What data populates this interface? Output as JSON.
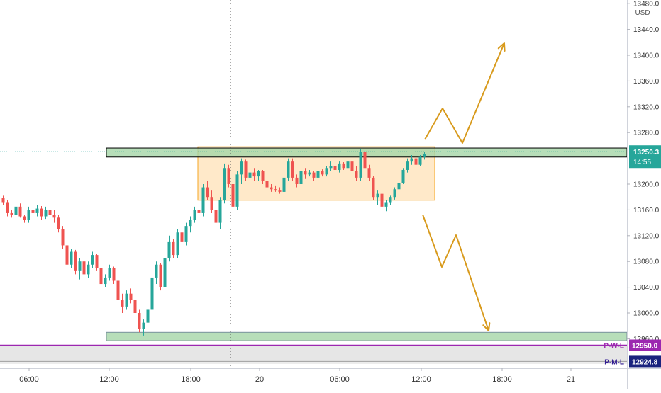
{
  "chart_data": {
    "type": "candlestick",
    "symbol_currency": "USD",
    "y_axis": {
      "ticks": [
        13480.0,
        13440.0,
        13400.0,
        13360.0,
        13320.0,
        13280.0,
        13200.0,
        13160.0,
        13120.0,
        13080.0,
        13040.0,
        13000.0,
        12960.0
      ],
      "tick_labels": [
        "13480.0",
        "13440.0",
        "13400.0",
        "13360.0",
        "13320.0",
        "13280.0",
        "13200.0",
        "13160.0",
        "13120.0",
        "13080.0",
        "13040.0",
        "13000.0",
        "12960.0"
      ],
      "range": [
        12912,
        13488
      ]
    },
    "x_axis": {
      "labels": [
        "06:00",
        "12:00",
        "18:00",
        "20",
        "06:00",
        "12:00",
        "18:00",
        "21"
      ]
    },
    "price_badge": {
      "value": "13250.3",
      "countdown": "14:55",
      "color": "#26a69a"
    },
    "levels": [
      {
        "tag": "P-W-L",
        "value": "12950.0",
        "price": 12950.0,
        "color": "#9c27b0"
      },
      {
        "tag": "P-M-L",
        "value": "12924.8",
        "price": 12924.8,
        "color": "#311b92"
      }
    ],
    "zones": [
      {
        "kind": "resistance",
        "low": 13242,
        "high": 13256,
        "color": "#a5d6a7"
      },
      {
        "kind": "support",
        "low": 12957,
        "high": 12970,
        "color": "#a5d6a7"
      },
      {
        "kind": "range",
        "low": 13175,
        "high": 13258,
        "color": "#ffe0b2"
      }
    ],
    "colors": {
      "up": "#26a69a",
      "down": "#ef5350",
      "projection": "#d89a1c"
    },
    "candles": [
      [
        13178,
        13182,
        13168,
        13172
      ],
      [
        13172,
        13175,
        13150,
        13155
      ],
      [
        13155,
        13160,
        13148,
        13152
      ],
      [
        13152,
        13168,
        13150,
        13165
      ],
      [
        13165,
        13170,
        13148,
        13150
      ],
      [
        13150,
        13152,
        13140,
        13145
      ],
      [
        13145,
        13165,
        13140,
        13160
      ],
      [
        13160,
        13165,
        13150,
        13155
      ],
      [
        13155,
        13168,
        13150,
        13162
      ],
      [
        13162,
        13166,
        13145,
        13150
      ],
      [
        13150,
        13165,
        13146,
        13160
      ],
      [
        13160,
        13162,
        13148,
        13152
      ],
      [
        13152,
        13160,
        13140,
        13148
      ],
      [
        13148,
        13152,
        13125,
        13130
      ],
      [
        13130,
        13135,
        13100,
        13105
      ],
      [
        13105,
        13110,
        13070,
        13075
      ],
      [
        13075,
        13100,
        13070,
        13095
      ],
      [
        13095,
        13098,
        13060,
        13065
      ],
      [
        13065,
        13085,
        13052,
        13080
      ],
      [
        13080,
        13085,
        13055,
        13060
      ],
      [
        13060,
        13080,
        13055,
        13075
      ],
      [
        13075,
        13095,
        13070,
        13090
      ],
      [
        13090,
        13092,
        13065,
        13070
      ],
      [
        13070,
        13078,
        13040,
        13045
      ],
      [
        13045,
        13060,
        13040,
        13055
      ],
      [
        13055,
        13075,
        13050,
        13070
      ],
      [
        13070,
        13072,
        13045,
        13050
      ],
      [
        13050,
        13055,
        13015,
        13020
      ],
      [
        13020,
        13030,
        13000,
        13010
      ],
      [
        13010,
        13035,
        13005,
        13030
      ],
      [
        13030,
        13038,
        13015,
        13020
      ],
      [
        13020,
        13025,
        12995,
        13000
      ],
      [
        13000,
        13005,
        12970,
        12975
      ],
      [
        12975,
        12990,
        12965,
        12985
      ],
      [
        12985,
        13010,
        12980,
        13005
      ],
      [
        13005,
        13060,
        13000,
        13055
      ],
      [
        13055,
        13080,
        13045,
        13075
      ],
      [
        13075,
        13078,
        13035,
        13040
      ],
      [
        13040,
        13090,
        13035,
        13085
      ],
      [
        13085,
        13120,
        13080,
        13110
      ],
      [
        13110,
        13115,
        13085,
        13090
      ],
      [
        13090,
        13130,
        13085,
        13125
      ],
      [
        13125,
        13132,
        13105,
        13110
      ],
      [
        13110,
        13140,
        13105,
        13135
      ],
      [
        13135,
        13150,
        13125,
        13145
      ],
      [
        13145,
        13165,
        13140,
        13160
      ],
      [
        13160,
        13163,
        13150,
        13155
      ],
      [
        13155,
        13200,
        13150,
        13195
      ],
      [
        13195,
        13205,
        13175,
        13180
      ],
      [
        13180,
        13190,
        13155,
        13160
      ],
      [
        13160,
        13170,
        13135,
        13140
      ],
      [
        13140,
        13180,
        13130,
        13175
      ],
      [
        13175,
        13232,
        13170,
        13225
      ],
      [
        13225,
        13230,
        13195,
        13200
      ],
      [
        13200,
        13205,
        13160,
        13165
      ],
      [
        13165,
        13220,
        13160,
        13215
      ],
      [
        13215,
        13240,
        13200,
        13235
      ],
      [
        13235,
        13238,
        13205,
        13210
      ],
      [
        13210,
        13222,
        13200,
        13218
      ],
      [
        13218,
        13225,
        13205,
        13212
      ],
      [
        13212,
        13222,
        13205,
        13220
      ],
      [
        13220,
        13222,
        13200,
        13205
      ],
      [
        13205,
        13207,
        13190,
        13195
      ],
      [
        13195,
        13200,
        13188,
        13192
      ],
      [
        13192,
        13198,
        13188,
        13190
      ],
      [
        13190,
        13195,
        13185,
        13188
      ],
      [
        13188,
        13215,
        13186,
        13210
      ],
      [
        13210,
        13240,
        13205,
        13235
      ],
      [
        13235,
        13240,
        13205,
        13210
      ],
      [
        13210,
        13215,
        13195,
        13200
      ],
      [
        13200,
        13225,
        13198,
        13220
      ],
      [
        13220,
        13225,
        13208,
        13215
      ],
      [
        13215,
        13222,
        13212,
        13218
      ],
      [
        13218,
        13220,
        13205,
        13210
      ],
      [
        13210,
        13225,
        13205,
        13220
      ],
      [
        13220,
        13223,
        13212,
        13215
      ],
      [
        13215,
        13228,
        13212,
        13225
      ],
      [
        13225,
        13235,
        13220,
        13228
      ],
      [
        13228,
        13232,
        13215,
        13222
      ],
      [
        13222,
        13235,
        13218,
        13232
      ],
      [
        13232,
        13234,
        13222,
        13225
      ],
      [
        13225,
        13238,
        13220,
        13235
      ],
      [
        13235,
        13237,
        13215,
        13220
      ],
      [
        13220,
        13228,
        13205,
        13210
      ],
      [
        13210,
        13255,
        13205,
        13250
      ],
      [
        13250,
        13262,
        13222,
        13225
      ],
      [
        13225,
        13230,
        13205,
        13210
      ],
      [
        13210,
        13213,
        13175,
        13180
      ],
      [
        13180,
        13190,
        13168,
        13185
      ],
      [
        13185,
        13188,
        13162,
        13165
      ],
      [
        13165,
        13175,
        13158,
        13172
      ],
      [
        13172,
        13182,
        13168,
        13180
      ],
      [
        13180,
        13195,
        13176,
        13192
      ],
      [
        13192,
        13205,
        13188,
        13202
      ],
      [
        13202,
        13225,
        13200,
        13222
      ],
      [
        13222,
        13240,
        13218,
        13235
      ],
      [
        13235,
        13245,
        13230,
        13240
      ],
      [
        13240,
        13242,
        13225,
        13230
      ],
      [
        13230,
        13245,
        13228,
        13242
      ],
      [
        13242,
        13250,
        13238,
        13247
      ]
    ]
  }
}
